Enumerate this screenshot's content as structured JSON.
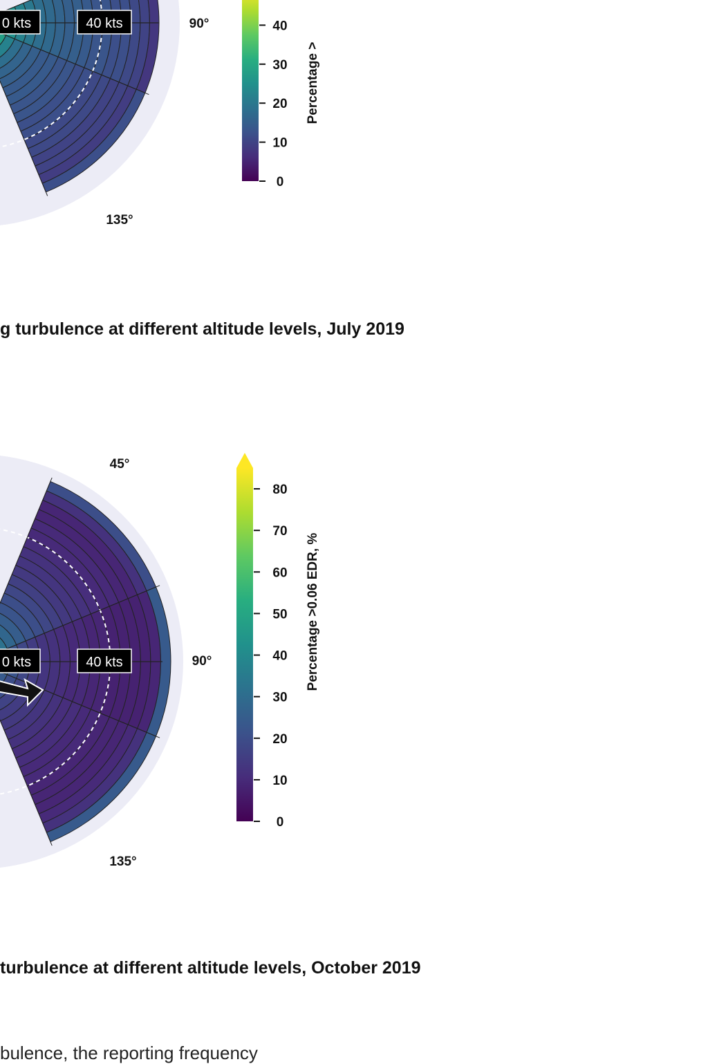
{
  "chart_data": [
    {
      "type": "polar-bar",
      "caption": "g turbulence at different altitude levels, July 2019",
      "direction_labels": [
        "90°",
        "135°"
      ],
      "speed_labels": [
        "0 kts",
        "40 kts"
      ],
      "colorbar": {
        "label": "Percentage >",
        "ticks": [
          0,
          10,
          20,
          30,
          40
        ],
        "range": [
          0,
          50
        ]
      },
      "sectors": [
        {
          "direction": 90,
          "values": [
            40,
            30,
            25,
            22,
            20,
            18,
            17,
            16,
            15,
            15,
            14,
            13,
            13,
            12,
            12,
            11,
            10,
            8
          ]
        },
        {
          "direction": 135,
          "values": [
            35,
            28,
            22,
            18,
            16,
            15,
            14,
            14,
            13,
            13,
            12,
            12,
            11,
            11,
            10,
            10,
            9,
            12
          ]
        }
      ]
    },
    {
      "type": "polar-bar",
      "caption": "turbulence at different altitude levels, October 2019",
      "direction_labels": [
        "45°",
        "90°",
        "135°"
      ],
      "speed_labels": [
        "0 kts",
        "40 kts"
      ],
      "colorbar": {
        "label": "Percentage >0.06 EDR, %",
        "ticks": [
          0,
          10,
          20,
          30,
          40,
          50,
          60,
          70,
          80
        ],
        "range": [
          0,
          85
        ],
        "extend": "max"
      },
      "sectors": [
        {
          "direction": 45,
          "values": [
            38,
            32,
            28,
            25,
            22,
            20,
            18,
            16,
            14,
            13,
            12,
            11,
            10,
            10,
            9,
            9,
            12,
            20
          ]
        },
        {
          "direction": 90,
          "values": [
            40,
            30,
            22,
            18,
            15,
            13,
            12,
            11,
            10,
            10,
            9,
            9,
            8,
            8,
            8,
            8,
            9,
            24
          ]
        },
        {
          "direction": 135,
          "values": [
            30,
            24,
            20,
            17,
            15,
            14,
            13,
            12,
            11,
            11,
            10,
            10,
            9,
            9,
            9,
            10,
            12,
            24
          ]
        }
      ]
    }
  ],
  "body_text": "bulence, the reporting frequency"
}
